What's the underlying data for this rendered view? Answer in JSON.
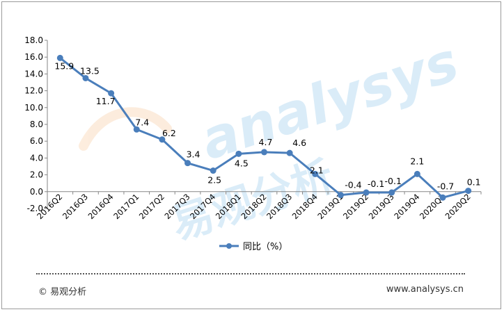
{
  "chart_data": {
    "type": "line",
    "categories": [
      "2016Q2",
      "2016Q3",
      "2016Q4",
      "2017Q1",
      "2017Q2",
      "2017Q3",
      "2017Q4",
      "2018Q1",
      "2018Q2",
      "2018Q3",
      "2018Q4",
      "2019Q1",
      "2019Q2",
      "2019Q3",
      "2019Q4",
      "2020Q1",
      "2020Q2"
    ],
    "series": [
      {
        "name": "同比（%）",
        "values": [
          15.9,
          13.5,
          11.7,
          7.4,
          6.2,
          3.4,
          2.5,
          4.5,
          4.7,
          4.6,
          2.1,
          -0.4,
          -0.1,
          -0.1,
          2.1,
          -0.7,
          0.1
        ],
        "data_labels": [
          "15.9",
          "13.5",
          "11.7",
          "7.4",
          "6.2",
          "3.4",
          "2.5",
          "4.5",
          "4.7",
          "4.6",
          "2.1",
          "-0.4",
          "-0.1",
          "-0.1",
          "2.1",
          "-0.7",
          "0.1"
        ],
        "color": "#4a7ebb"
      }
    ],
    "ylim": [
      -2.0,
      18.0
    ],
    "yticks": [
      -2.0,
      0.0,
      2.0,
      4.0,
      6.0,
      8.0,
      10.0,
      12.0,
      14.0,
      16.0,
      18.0
    ],
    "ytick_labels": [
      "-2.0",
      "0.0",
      "2.0",
      "4.0",
      "6.0",
      "8.0",
      "10.0",
      "12.0",
      "14.0",
      "16.0",
      "18.0"
    ],
    "grid": false,
    "legend_position": "bottom-center",
    "title": "",
    "xlabel": "",
    "ylabel": ""
  },
  "footer": {
    "source": "© 易观分析",
    "website": "www.analysys.cn"
  },
  "watermark": {
    "latin": "analysys",
    "cjk": "易观分析"
  },
  "colors": {
    "line": "#4a7ebb",
    "axis": "#868686",
    "text": "#000000",
    "watermark_blue": "#3a9ad9",
    "watermark_orange": "#f39c4a"
  }
}
